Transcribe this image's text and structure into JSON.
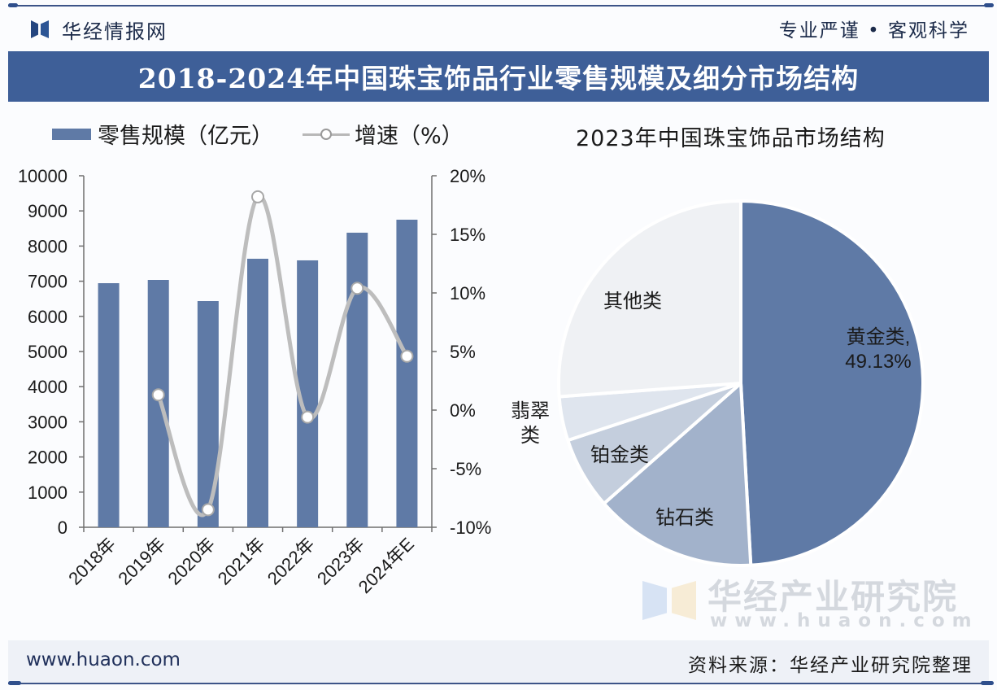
{
  "header": {
    "brand_name": "华经情报网",
    "slogan": "专业严谨 • 客观科学",
    "title": "2018-2024年中国珠宝饰品行业零售规模及细分市场结构"
  },
  "footer": {
    "url": "www.huaon.com",
    "source": "资料来源：华经产业研究院整理"
  },
  "watermark": {
    "name": "华经产业研究院",
    "url": "www.huaon.com"
  },
  "colors": {
    "title_bar": "#3e5f98",
    "bar": "#5f7aa6",
    "line": "#bdbdbd",
    "pie_gold": "#5f7aa6",
    "pie_diamond": "#a2b2cb",
    "pie_platinum": "#c4cedd",
    "pie_jade": "#dfe5ee",
    "pie_other": "#eff1f4"
  },
  "chart_data": [
    {
      "type": "bar",
      "combo": "bar+line",
      "title": "",
      "legend": [
        "零售规模（亿元）",
        "增速（%）"
      ],
      "legend_position": "top-left",
      "categories": [
        "2018年",
        "2019年",
        "2020年",
        "2021年",
        "2022年",
        "2023年",
        "2024年E"
      ],
      "series": [
        {
          "name": "零售规模（亿元）",
          "type": "bar",
          "axis": "left",
          "values": [
            6944,
            7037,
            6435,
            7639,
            7593,
            8380,
            8750
          ]
        },
        {
          "name": "增速（%）",
          "type": "line",
          "axis": "right",
          "smooth": true,
          "values": [
            null,
            1.3,
            -8.5,
            18.2,
            -0.6,
            10.4,
            4.6
          ]
        }
      ],
      "y_left": {
        "min": 0,
        "max": 10000,
        "step": 1000,
        "ticks": [
          "0",
          "1000",
          "2000",
          "3000",
          "4000",
          "5000",
          "6000",
          "7000",
          "8000",
          "9000",
          "10000"
        ]
      },
      "y_right": {
        "min": -10,
        "max": 20,
        "step": 5,
        "ticks": [
          "-10%",
          "-5%",
          "0%",
          "5%",
          "10%",
          "15%",
          "20%"
        ]
      },
      "grid": false
    },
    {
      "type": "pie",
      "title": "2023年中国珠宝饰品市场结构",
      "slices": [
        {
          "label": "黄金类",
          "value": 49.13,
          "label_text": "黄金类,",
          "value_text": "49.13%",
          "color_key": "pie_gold"
        },
        {
          "label": "钻石类",
          "value": 14.4,
          "color_key": "pie_diamond"
        },
        {
          "label": "铂金类",
          "value": 6.4,
          "color_key": "pie_platinum"
        },
        {
          "label": "翡翠类",
          "value": 3.9,
          "color_key": "pie_jade"
        },
        {
          "label": "其他类",
          "value": 26.17,
          "color_key": "pie_other"
        }
      ],
      "start": "top",
      "direction": "clockwise"
    }
  ]
}
